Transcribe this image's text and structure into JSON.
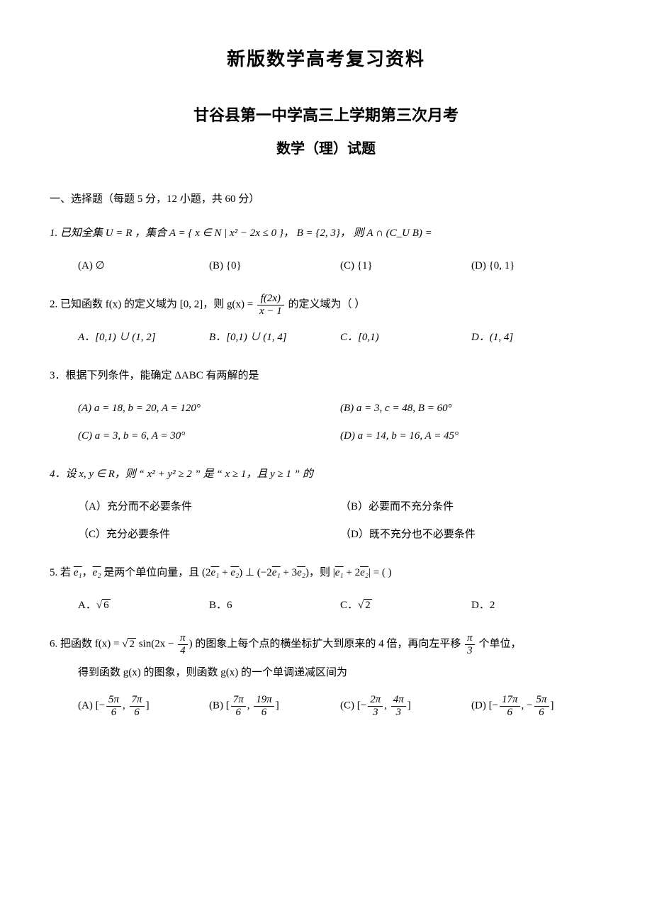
{
  "doc_title": "新版数学高考复习资料",
  "school_line": "甘谷县第一中学高三上学期第三次月考",
  "subject_line": "数学（理）试题",
  "section1": "一、选择题（每题 5 分，12 小题，共 60 分）",
  "q1_text": "1. 已知全集 U = R ，集合 A = { x ∈ N | x² − 2x ≤ 0 }，  B = {2, 3}，  则 A ∩ (C_U B) =",
  "q1_A": "(A) ∅",
  "q1_B": "(B) {0}",
  "q1_C": "(C) {1}",
  "q1_D": "(D) {0, 1}",
  "q2_pre": "2. 已知函数 f(x) 的定义域为 [0, 2]，则 g(x) = ",
  "q2_num": "f(2x)",
  "q2_den": "x − 1",
  "q2_post": " 的定义域为（      ）",
  "q2_A": "A．[0,1) ∪ (1, 2]",
  "q2_B": "B．[0,1) ∪ (1, 4]",
  "q2_C": "C．[0,1)",
  "q2_D": "D．(1, 4]",
  "q3_text": "3．根据下列条件，能确定 ΔABC 有两解的是",
  "q3_A": "(A) a = 18, b = 20, A = 120°",
  "q3_B": "(B) a = 3, c = 48, B = 60°",
  "q3_C": "(C) a = 3, b = 6, A = 30°",
  "q3_D": "(D) a = 14, b = 16, A = 45°",
  "q4_text": "4．设 x, y ∈ R，则 “ x² + y² ≥ 2 ” 是 “ x ≥ 1，且 y ≥ 1 ” 的",
  "q4_A": "（A）充分而不必要条件",
  "q4_B": "（B）必要而不充分条件",
  "q4_C": "（C）充分必要条件",
  "q4_D": "（D）既不充分也不必要条件",
  "q5_pre": "5. 若 ",
  "q5_e1": "e₁",
  "q5_sep1": "，",
  "q5_e2": "e₂",
  "q5_mid": " 是两个单位向量，且 (2",
  "q5_e1b": "e₁",
  "q5_plus": " + ",
  "q5_e2b": "e₂",
  "q5_perp": ") ⊥ (−2",
  "q5_e1c": "e₁",
  "q5_p3": " + 3",
  "q5_e2c": "e₂",
  "q5_then": ")，则 |",
  "q5_e1d": "e₁",
  "q5_p2": " + 2",
  "q5_e2d": "e₂",
  "q5_end": "| = (        )",
  "q5_A_pre": "A．",
  "q5_A_rad": "6",
  "q5_B": "B．6",
  "q5_C_pre": "C．",
  "q5_C_rad": "2",
  "q5_D": "D．2",
  "q6_pre": "6. 把函数 f(x) = ",
  "q6_rad2": "2",
  "q6_sin": " sin(2x − ",
  "q6_num1": "π",
  "q6_den1": "4",
  "q6_mid": ") 的图象上每个点的横坐标扩大到原来的 4 倍，再向左平移 ",
  "q6_num2": "π",
  "q6_den2": "3",
  "q6_post": " 个单位，",
  "q6_line2": "得到函数 g(x) 的图象，则函数 g(x) 的一个单调递减区间为",
  "q6_A_pre": "(A) [−",
  "q6_A_n1": "5π",
  "q6_A_d1": "6",
  "q6_A_sep": ", ",
  "q6_A_n2": "7π",
  "q6_A_d2": "6",
  "q6_A_end": "]",
  "q6_B_pre": "(B) [",
  "q6_B_n1": "7π",
  "q6_B_d1": "6",
  "q6_B_n2": "19π",
  "q6_B_d2": "6",
  "q6_C_pre": "(C) [−",
  "q6_C_n1": "2π",
  "q6_C_d1": "3",
  "q6_C_n2": "4π",
  "q6_C_d2": "3",
  "q6_D_pre": "(D) [−",
  "q6_D_n1": "17π",
  "q6_D_d1": "6",
  "q6_D_sep": ", −",
  "q6_D_n2": "5π",
  "q6_D_d2": "6"
}
